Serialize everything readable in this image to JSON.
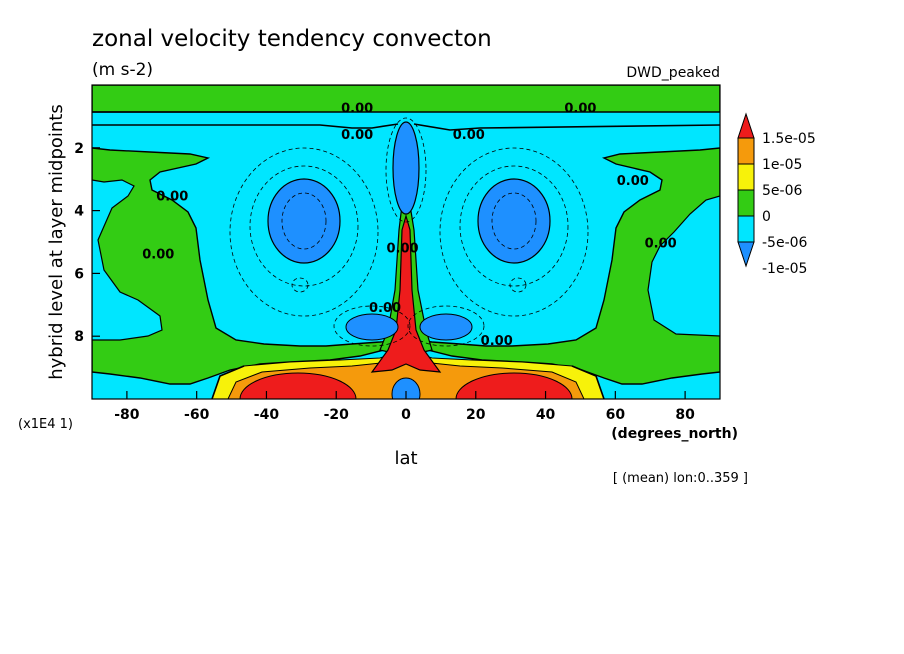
{
  "chart_data": {
    "type": "contour",
    "title": "zonal velocity tendency convecton",
    "units": "(m s-2)",
    "dataset": "DWD_peaked",
    "xlabel": "lat",
    "x_units": "(degrees_north)",
    "ylabel": "hybrid level at layer midpoints",
    "y_scale_note": "(x1E4 1)",
    "footer": "[ (mean) lon:0..359 ]",
    "xlim": [
      -90,
      90
    ],
    "ylim": [
      10,
      0
    ],
    "x_ticks": [
      {
        "v": -80,
        "label": "-80"
      },
      {
        "v": -60,
        "label": "-60"
      },
      {
        "v": -40,
        "label": "-40"
      },
      {
        "v": -20,
        "label": "-20"
      },
      {
        "v": 0,
        "label": "0"
      },
      {
        "v": 20,
        "label": "20"
      },
      {
        "v": 40,
        "label": "40"
      },
      {
        "v": 60,
        "label": "60"
      },
      {
        "v": 80,
        "label": "80"
      }
    ],
    "y_ticks": [
      {
        "v": 2,
        "label": "2"
      },
      {
        "v": 4,
        "label": "4"
      },
      {
        "v": 6,
        "label": "6"
      },
      {
        "v": 8,
        "label": "8"
      }
    ],
    "levels": [
      {
        "label": "1.5e-05",
        "color": "#ee1c1c"
      },
      {
        "label": "1e-05",
        "color": "#f59a0c"
      },
      {
        "label": "5e-06",
        "color": "#f7f20a"
      },
      {
        "label": "0",
        "color": "#33cc14"
      },
      {
        "label": "-5e-06",
        "color": "#00e6ff"
      },
      {
        "label": "-1e-05",
        "color": "#1e90ff"
      }
    ],
    "contour_labels": [
      {
        "text": "0.00",
        "lat": -14,
        "lev": 0.75
      },
      {
        "text": "0.00",
        "lat": 50,
        "lev": 0.75
      },
      {
        "text": "0.00",
        "lat": -14,
        "lev": 1.6
      },
      {
        "text": "0.00",
        "lat": 18,
        "lev": 1.6
      },
      {
        "text": "0.00",
        "lat": 65,
        "lev": 3.05
      },
      {
        "text": "0.00",
        "lat": -67,
        "lev": 3.55
      },
      {
        "text": "0.00",
        "lat": -71,
        "lev": 5.4
      },
      {
        "text": "0.00",
        "lat": 73,
        "lev": 5.05
      },
      {
        "text": "0.00",
        "lat": 26,
        "lev": 8.15
      },
      {
        "text": "0.00",
        "lat": -6,
        "lev": 7.1
      },
      {
        "text": "0.00",
        "lat": -1,
        "lev": 5.2
      }
    ],
    "features": [
      {
        "kind": "negative core",
        "lat": -30,
        "lev": 4.3,
        "value_class": "-1e-05"
      },
      {
        "kind": "negative core",
        "lat": 30,
        "lev": 4.3,
        "value_class": "-1e-05"
      },
      {
        "kind": "negative core",
        "lat": 0,
        "lev": 2.3,
        "value_class": "-1e-05"
      },
      {
        "kind": "negative core",
        "lat": -12,
        "lev": 7.9,
        "value_class": "-1e-05"
      },
      {
        "kind": "negative core",
        "lat": 12,
        "lev": 7.9,
        "value_class": "-1e-05"
      },
      {
        "kind": "positive jet",
        "lat": 0,
        "lev": 6.0,
        "value_class": "1.5e-05"
      },
      {
        "kind": "positive core",
        "lat": -30,
        "lev": 9.5,
        "value_class": "1.5e-05"
      },
      {
        "kind": "positive core",
        "lat": 30,
        "lev": 9.5,
        "value_class": "1.5e-05"
      }
    ]
  }
}
